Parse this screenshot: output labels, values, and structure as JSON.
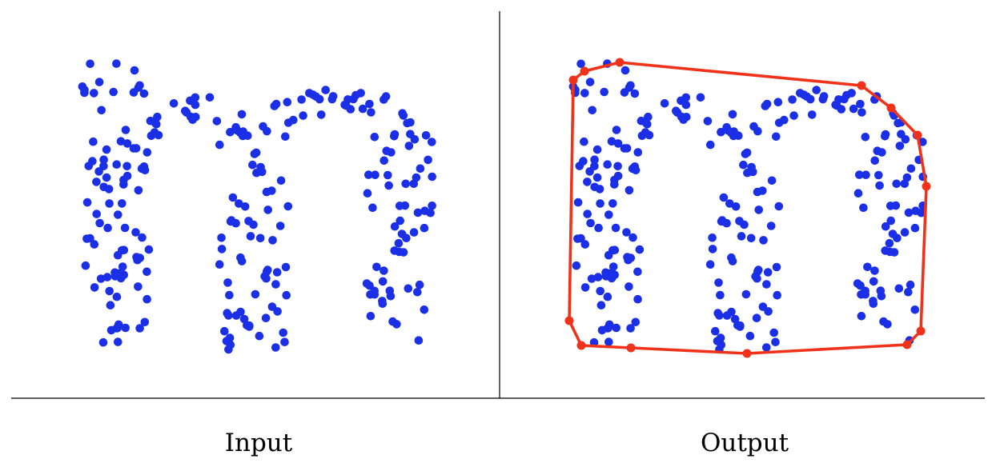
{
  "panels": [
    {
      "caption": "Input"
    },
    {
      "caption": "Output"
    }
  ],
  "colors": {
    "point": "#1a2fe6",
    "hull": "#f0321a",
    "rule": "#000000"
  },
  "point_cloud_shape": "letter-m",
  "hull_vertex_count": 12
}
